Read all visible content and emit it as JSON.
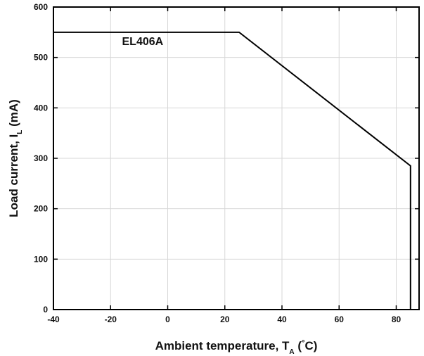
{
  "chart_data": {
    "type": "line",
    "title": "",
    "xlabel": "Ambient temperature, T",
    "xlabel_subscript": "A",
    "xlabel_unit_prefix": " (",
    "xlabel_unit_degree": "°",
    "xlabel_unit_suffix": "C)",
    "ylabel": "Load current, I",
    "ylabel_subscript": "L",
    "ylabel_unit": " (mA)",
    "xlim": [
      -40,
      88
    ],
    "ylim": [
      0,
      600
    ],
    "x_ticks": [
      -40,
      -20,
      0,
      20,
      40,
      60,
      80
    ],
    "y_ticks": [
      0,
      100,
      200,
      300,
      400,
      500,
      600
    ],
    "grid": true,
    "series": [
      {
        "values": [
          {
            "x": -40,
            "y": 550
          },
          {
            "x": 25,
            "y": 550
          },
          {
            "x": 85,
            "y": 285
          },
          {
            "x": 85,
            "y": 0
          }
        ],
        "color": "#000000"
      }
    ],
    "annotations": [
      {
        "text": "EL406A",
        "x": -16,
        "y": 525
      }
    ]
  }
}
